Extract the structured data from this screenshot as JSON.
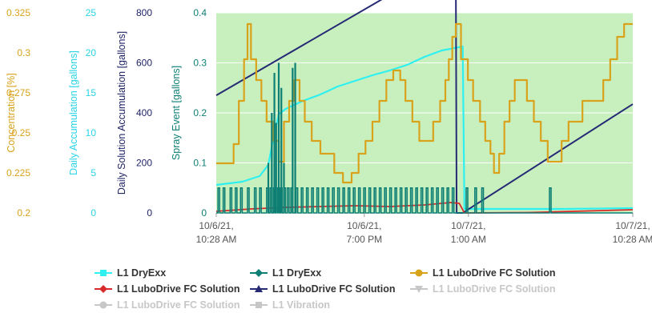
{
  "chart_data": {
    "type": "line",
    "background": "#c8f0bf",
    "grid": true,
    "y_axes": [
      {
        "id": "conc",
        "label": "Concentration [%]",
        "min": 0.2,
        "max": 0.325,
        "ticks": [
          "0.2",
          "0.225",
          "0.25",
          "0.275",
          "0.3",
          "0.325"
        ],
        "color": "#d9a21b"
      },
      {
        "id": "daily",
        "label": "Daily Accumulation [gallons]",
        "min": 0,
        "max": 25,
        "ticks": [
          "0",
          "5",
          "10",
          "15",
          "20",
          "25"
        ],
        "color": "#2ad4e6"
      },
      {
        "id": "solution",
        "label": "Daily Solution Accumulation [gallons]",
        "min": 0,
        "max": 800,
        "ticks": [
          "0",
          "200",
          "400",
          "600",
          "800"
        ],
        "color": "#1f2467"
      },
      {
        "id": "spray",
        "label": "Spray Event [gallons]",
        "min": 0,
        "max": 0.4,
        "ticks": [
          "0",
          "0.1",
          "0.2",
          "0.3",
          "0.4"
        ],
        "color": "#0e7f74"
      }
    ],
    "x_axis": {
      "min_hours": 0,
      "max_hours": 24,
      "ticks": [
        {
          "h": 0,
          "line1": "10/6/21,",
          "line2": "10:28 AM"
        },
        {
          "h": 8.53,
          "line1": "10/6/21,",
          "line2": "7:00 PM"
        },
        {
          "h": 14.53,
          "line1": "10/7/21,",
          "line2": "1:00 AM"
        },
        {
          "h": 24,
          "line1": "10/7/21,",
          "line2": "10:28 AM"
        }
      ]
    },
    "series": [
      {
        "name": "L1 DryExx",
        "axis": "daily",
        "color": "#2ef0f0",
        "width": 2.2,
        "shape": "line",
        "points": [
          [
            0,
            3.5
          ],
          [
            1.5,
            3.9
          ],
          [
            2.5,
            4.6
          ],
          [
            3.0,
            6.0
          ],
          [
            3.3,
            9.5
          ],
          [
            3.6,
            12.3
          ],
          [
            4.0,
            13.0
          ],
          [
            5.0,
            14.0
          ],
          [
            6.0,
            14.8
          ],
          [
            7.0,
            15.8
          ],
          [
            8.0,
            16.5
          ],
          [
            9.0,
            17.2
          ],
          [
            10.0,
            17.8
          ],
          [
            11.0,
            18.5
          ],
          [
            12.0,
            19.5
          ],
          [
            13.0,
            20.3
          ],
          [
            13.5,
            20.5
          ],
          [
            14.2,
            20.8
          ],
          [
            14.3,
            0.5
          ],
          [
            16.0,
            0.5
          ],
          [
            20.0,
            0.5
          ],
          [
            24.0,
            0.6
          ]
        ]
      },
      {
        "name": "L1 LuboDrive FC Solution",
        "axis": "solution",
        "color": "#262a75",
        "width": 2.0,
        "shape": "line",
        "points": [
          [
            0,
            470
          ],
          [
            13.8,
            1025
          ],
          [
            13.85,
            0
          ],
          [
            14.2,
            0
          ],
          [
            24,
            435
          ]
        ]
      },
      {
        "name": "L1 LuboDrive FC Solution",
        "axis": "daily",
        "color": "#d82a2a",
        "width": 1.8,
        "shape": "line",
        "points": [
          [
            0,
            0.2
          ],
          [
            2,
            0.5
          ],
          [
            4,
            0.7
          ],
          [
            6,
            0.8
          ],
          [
            8,
            0.9
          ],
          [
            10,
            0.8
          ],
          [
            12,
            1.0
          ],
          [
            13.5,
            1.3
          ],
          [
            14,
            1.2
          ],
          [
            14.3,
            0
          ],
          [
            18,
            0.05
          ],
          [
            24,
            0.4
          ]
        ]
      },
      {
        "name": "L1 LuboDrive FC Solution",
        "axis": "conc",
        "color": "#d9a21b",
        "width": 2.2,
        "shape": "step",
        "points": [
          [
            0,
            0.231
          ],
          [
            0.8,
            0.231
          ],
          [
            1.0,
            0.243
          ],
          [
            1.3,
            0.27
          ],
          [
            1.6,
            0.296
          ],
          [
            1.8,
            0.318
          ],
          [
            2.0,
            0.296
          ],
          [
            2.3,
            0.283
          ],
          [
            2.6,
            0.27
          ],
          [
            2.9,
            0.257
          ],
          [
            3.3,
            0.245
          ],
          [
            3.6,
            0.232
          ],
          [
            3.9,
            0.257
          ],
          [
            4.2,
            0.27
          ],
          [
            4.5,
            0.283
          ],
          [
            4.8,
            0.27
          ],
          [
            5.1,
            0.257
          ],
          [
            5.5,
            0.245
          ],
          [
            6.0,
            0.237
          ],
          [
            6.4,
            0.237
          ],
          [
            6.8,
            0.225
          ],
          [
            7.3,
            0.219
          ],
          [
            7.8,
            0.225
          ],
          [
            8.2,
            0.237
          ],
          [
            8.6,
            0.245
          ],
          [
            9.0,
            0.257
          ],
          [
            9.4,
            0.27
          ],
          [
            9.8,
            0.283
          ],
          [
            10.2,
            0.289
          ],
          [
            10.6,
            0.283
          ],
          [
            10.9,
            0.27
          ],
          [
            11.3,
            0.257
          ],
          [
            11.7,
            0.245
          ],
          [
            12.1,
            0.245
          ],
          [
            12.5,
            0.257
          ],
          [
            12.9,
            0.27
          ],
          [
            13.2,
            0.283
          ],
          [
            13.4,
            0.296
          ],
          [
            13.6,
            0.31
          ],
          [
            13.8,
            0.318
          ],
          [
            14.1,
            0.296
          ],
          [
            14.5,
            0.283
          ],
          [
            14.8,
            0.27
          ],
          [
            15.2,
            0.257
          ],
          [
            15.5,
            0.245
          ],
          [
            15.8,
            0.237
          ],
          [
            16.0,
            0.225
          ],
          [
            16.3,
            0.237
          ],
          [
            16.6,
            0.257
          ],
          [
            16.9,
            0.27
          ],
          [
            17.2,
            0.283
          ],
          [
            17.5,
            0.283
          ],
          [
            17.9,
            0.27
          ],
          [
            18.3,
            0.257
          ],
          [
            18.7,
            0.245
          ],
          [
            19.1,
            0.232
          ],
          [
            19.5,
            0.232
          ],
          [
            19.9,
            0.245
          ],
          [
            20.3,
            0.257
          ],
          [
            20.7,
            0.257
          ],
          [
            21.1,
            0.27
          ],
          [
            21.5,
            0.27
          ],
          [
            21.9,
            0.27
          ],
          [
            22.3,
            0.283
          ],
          [
            22.7,
            0.296
          ],
          [
            23.1,
            0.31
          ],
          [
            23.5,
            0.318
          ],
          [
            24,
            0.318
          ]
        ]
      },
      {
        "name": "L1 DryExx",
        "axis": "spray",
        "color": "#0e7f74",
        "width": 1.6,
        "shape": "spikes",
        "spikes": [
          0.1,
          0.4,
          0.8,
          1.1,
          1.4,
          1.8,
          2.2,
          2.5,
          2.9,
          3.1,
          3.3,
          3.45,
          3.55,
          3.7,
          3.9,
          4.1,
          4.3,
          4.6,
          4.9,
          5.2,
          5.5,
          5.8,
          6.1,
          6.4,
          6.7,
          7.0,
          7.3,
          7.6,
          7.9,
          8.2,
          8.5,
          8.8,
          9.1,
          9.4,
          9.7,
          10.0,
          10.3,
          10.6,
          10.9,
          11.2,
          11.5,
          11.8,
          12.1,
          12.4,
          12.7,
          13.0,
          13.3,
          13.6,
          14.4,
          14.9,
          15.3,
          19.2
        ],
        "spike_value": 0.05,
        "tall_spikes": [
          [
            3.0,
            0.1
          ],
          [
            3.2,
            0.2
          ],
          [
            3.35,
            0.28
          ],
          [
            3.45,
            0.18
          ],
          [
            3.6,
            0.3
          ],
          [
            3.75,
            0.25
          ],
          [
            3.9,
            0.1
          ],
          [
            4.4,
            0.29
          ],
          [
            4.55,
            0.3
          ]
        ]
      }
    ],
    "legend": [
      {
        "label": "L1 DryExx",
        "color": "#2ef0f0",
        "marker": "square",
        "muted": false
      },
      {
        "label": "L1 DryExx",
        "color": "#0e7f74",
        "marker": "diamond",
        "muted": false
      },
      {
        "label": "L1 LuboDrive FC Solution",
        "color": "#d9a21b",
        "marker": "circle",
        "muted": false
      },
      {
        "label": "L1 LuboDrive FC Solution",
        "color": "#d82a2a",
        "marker": "diamond",
        "muted": false
      },
      {
        "label": "L1 LuboDrive FC Solution",
        "color": "#262a75",
        "marker": "triangle",
        "muted": false
      },
      {
        "label": "L1 LuboDrive FC Solution",
        "color": "#c7c7c7",
        "marker": "triangle-down",
        "muted": true
      },
      {
        "label": "L1 LuboDrive FC Solution",
        "color": "#c7c7c7",
        "marker": "circle",
        "muted": true
      },
      {
        "label": "L1 Vibration",
        "color": "#c7c7c7",
        "marker": "square",
        "muted": true
      }
    ]
  }
}
